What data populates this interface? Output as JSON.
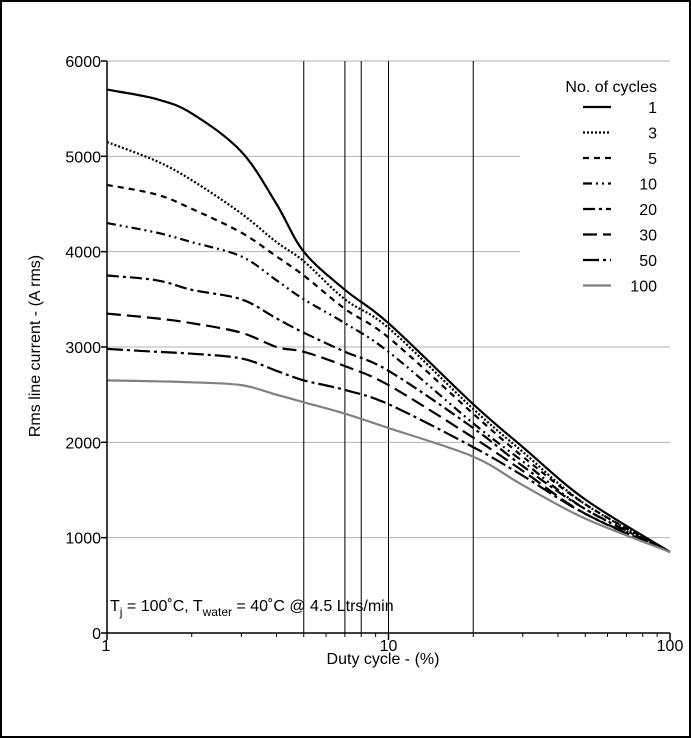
{
  "chart_data": {
    "type": "line",
    "xlabel": "Duty cycle - (%)",
    "ylabel": "Rms line current - (A rms)",
    "x_scale": "log",
    "xlim": [
      1,
      100
    ],
    "ylim": [
      0,
      6000
    ],
    "x_ticks": [
      1,
      10,
      100
    ],
    "y_ticks": [
      0,
      1000,
      2000,
      3000,
      4000,
      5000,
      6000
    ],
    "grid": {
      "horizontal": true,
      "vertical_lines_x": [
        5,
        7,
        8,
        10,
        20
      ]
    },
    "legend": {
      "title": "No. of cycles",
      "placement": "top-right"
    },
    "annotation": {
      "t_main": "T",
      "t_sub": "j",
      "eq1": " = 100˚C, T",
      "t_sub2": "water",
      "eq2": " = 40˚C @ 4.5 Ltrs/min"
    },
    "series": [
      {
        "name": "1",
        "color": "#000000",
        "dash": "solid",
        "x": [
          1,
          1.5,
          2,
          3,
          4,
          5,
          7,
          10,
          20,
          30,
          50,
          100
        ],
        "y": [
          5700,
          5600,
          5450,
          5050,
          4500,
          4000,
          3600,
          3250,
          2400,
          1950,
          1400,
          850
        ]
      },
      {
        "name": "3",
        "color": "#000000",
        "dash": "dot",
        "x": [
          1,
          1.5,
          2,
          3,
          4,
          5,
          7,
          10,
          20,
          30,
          50,
          100
        ],
        "y": [
          5150,
          4950,
          4750,
          4400,
          4100,
          3900,
          3500,
          3200,
          2350,
          1900,
          1350,
          850
        ]
      },
      {
        "name": "5",
        "color": "#000000",
        "dash": "short",
        "x": [
          1,
          1.5,
          2,
          3,
          4,
          5,
          7,
          10,
          20,
          30,
          50,
          100
        ],
        "y": [
          4700,
          4600,
          4450,
          4200,
          3950,
          3750,
          3400,
          3100,
          2300,
          1850,
          1350,
          850
        ]
      },
      {
        "name": "10",
        "color": "#000000",
        "dash": "dashdotdot",
        "x": [
          1,
          1.5,
          2,
          3,
          4,
          5,
          7,
          10,
          20,
          30,
          50,
          100
        ],
        "y": [
          4300,
          4200,
          4100,
          3950,
          3700,
          3500,
          3250,
          2950,
          2200,
          1800,
          1300,
          850
        ]
      },
      {
        "name": "20",
        "color": "#000000",
        "dash": "dashdot",
        "x": [
          1,
          1.5,
          2,
          3,
          4,
          5,
          7,
          10,
          20,
          30,
          50,
          100
        ],
        "y": [
          3750,
          3700,
          3600,
          3500,
          3300,
          3150,
          2950,
          2750,
          2150,
          1750,
          1300,
          850
        ]
      },
      {
        "name": "30",
        "color": "#000000",
        "dash": "long",
        "x": [
          1,
          1.5,
          2,
          3,
          4,
          5,
          7,
          10,
          20,
          30,
          50,
          100
        ],
        "y": [
          3350,
          3300,
          3250,
          3150,
          3000,
          2950,
          2800,
          2600,
          2050,
          1700,
          1250,
          850
        ]
      },
      {
        "name": "50",
        "color": "#000000",
        "dash": "longdot",
        "x": [
          1,
          1.5,
          2,
          3,
          4,
          5,
          7,
          10,
          20,
          30,
          50,
          100
        ],
        "y": [
          2980,
          2950,
          2930,
          2880,
          2750,
          2650,
          2550,
          2400,
          1950,
          1650,
          1250,
          850
        ]
      },
      {
        "name": "100",
        "color": "#808080",
        "dash": "solid",
        "x": [
          1,
          1.5,
          2,
          3,
          4,
          5,
          7,
          10,
          20,
          30,
          50,
          100
        ],
        "y": [
          2650,
          2640,
          2630,
          2600,
          2500,
          2420,
          2300,
          2150,
          1850,
          1550,
          1200,
          850
        ]
      }
    ]
  }
}
